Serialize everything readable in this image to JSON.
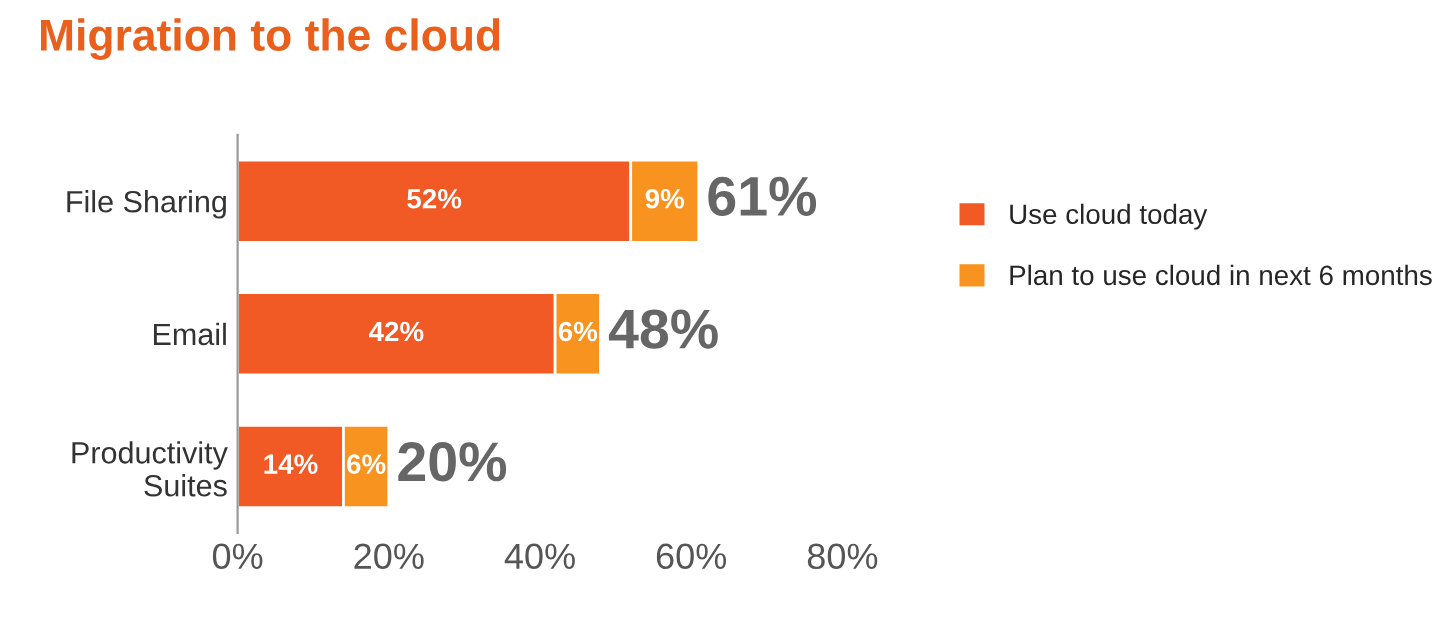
{
  "chart_data": {
    "type": "bar",
    "orientation": "horizontal",
    "stacked": true,
    "title": "Migration to the cloud",
    "categories": [
      "File Sharing",
      "Email",
      "Productivity\nSuites"
    ],
    "series": [
      {
        "name": "Use cloud today",
        "color": "#f15a24",
        "values": [
          52,
          42,
          14
        ],
        "value_labels": [
          "52%",
          "42%",
          "14%"
        ]
      },
      {
        "name": "Plan to use cloud in next 6 months",
        "color": "#f7931e",
        "values": [
          9,
          6,
          6
        ],
        "value_labels": [
          "9%",
          "6%",
          "6%"
        ]
      }
    ],
    "totals": [
      "61%",
      "48%",
      "20%"
    ],
    "xlim": [
      0,
      80
    ],
    "xticks": [
      {
        "value": 0,
        "label": "0%"
      },
      {
        "value": 20,
        "label": "20%"
      },
      {
        "value": 40,
        "label": "40%"
      },
      {
        "value": 60,
        "label": "60%"
      },
      {
        "value": 80,
        "label": "80%"
      }
    ],
    "grid": false,
    "legend": "right"
  }
}
